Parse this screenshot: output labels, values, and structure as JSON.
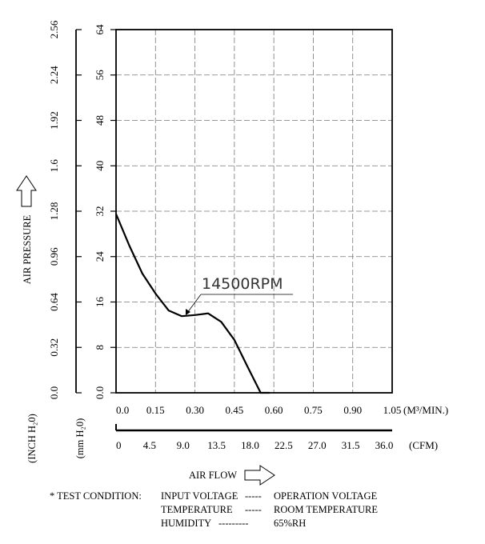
{
  "chart_data": {
    "type": "line",
    "x_axis_top": {
      "ticks": [
        "0.0",
        "0.15",
        "0.30",
        "0.45",
        "0.60",
        "0.75",
        "0.90",
        "1.05"
      ],
      "unit": "(M³/MIN.)"
    },
    "x_axis_bottom": {
      "ticks": [
        "0",
        "4.5",
        "9.0",
        "13.5",
        "18.0",
        "22.5",
        "27.0",
        "31.5",
        "36.0"
      ],
      "unit": "(CFM)"
    },
    "y_axis_inch": {
      "ticks": [
        "0.0",
        "0.32",
        "0.64",
        "0.96",
        "1.28",
        "1.6",
        "1.92",
        "2.24",
        "2.56"
      ],
      "unit": "(INCH H₂0)"
    },
    "y_axis_mm": {
      "ticks": [
        "0.0",
        "8",
        "16",
        "24",
        "32",
        "40",
        "48",
        "56",
        "64"
      ],
      "unit": "(mm H₂0)"
    },
    "xlim": [
      0,
      1.05
    ],
    "ylim": [
      0,
      64
    ],
    "xlabel": "AIR FLOW",
    "ylabel": "AIR PRESSURE",
    "grid": true,
    "series": [
      {
        "name": "14500RPM",
        "x": [
          0.0,
          0.05,
          0.1,
          0.15,
          0.2,
          0.25,
          0.3,
          0.35,
          0.4,
          0.45,
          0.5,
          0.55,
          0.585
        ],
        "y": [
          31.5,
          26.0,
          21.0,
          17.5,
          14.5,
          13.5,
          13.7,
          14.0,
          12.5,
          9.3,
          4.6,
          0.0,
          0.0
        ]
      }
    ]
  },
  "test_condition": {
    "prefix": "* TEST CONDITION:",
    "rows": [
      {
        "label": "INPUT VOLTAGE",
        "dashes": "-----",
        "value": "OPERATION VOLTAGE"
      },
      {
        "label": "TEMPERATURE",
        "dashes": "-----",
        "value": "ROOM TEMPERATURE"
      },
      {
        "label": "HUMIDITY",
        "dashes": "---------",
        "value": "65%RH"
      }
    ]
  }
}
